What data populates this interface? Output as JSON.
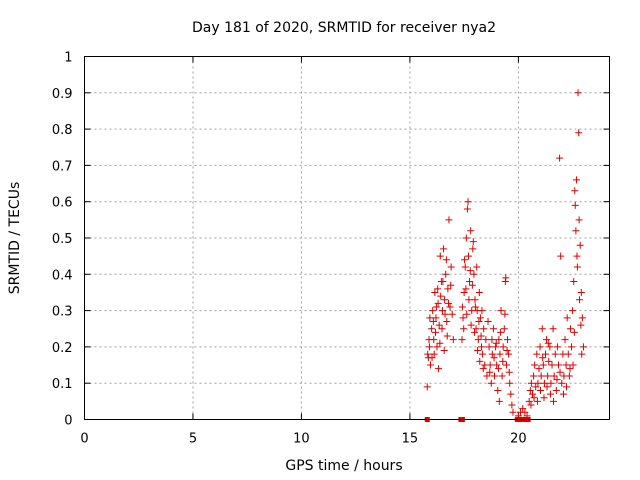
{
  "chart_data": {
    "type": "scatter",
    "title": "Day 181 of 2020, SRMTID for receiver nya2",
    "xlabel": "GPS time / hours",
    "ylabel": "SRMTID / TECUs",
    "xlim": [
      0,
      24.2
    ],
    "ylim": [
      0,
      1
    ],
    "x_ticks": [
      0,
      5,
      10,
      15,
      20
    ],
    "x_tick_labels": [
      "0",
      "5",
      "10",
      "15",
      "20"
    ],
    "y_ticks": [
      0,
      0.1,
      0.2,
      0.3,
      0.4,
      0.5,
      0.6,
      0.7,
      0.8,
      0.9,
      1
    ],
    "y_tick_labels": [
      "0",
      "0.1",
      "0.2",
      "0.3",
      "0.4",
      "0.5",
      "0.6",
      "0.7",
      "0.8",
      "0.9",
      "1"
    ],
    "grid": true,
    "marker": "+",
    "marker_color": "#e00000",
    "series": [
      {
        "name": "nya2",
        "points": [
          [
            15.8,
            0.09
          ],
          [
            15.85,
            0.17
          ],
          [
            15.9,
            0.2
          ],
          [
            15.95,
            0.15
          ],
          [
            16.0,
            0.25
          ],
          [
            16.05,
            0.3
          ],
          [
            16.1,
            0.22
          ],
          [
            16.15,
            0.35
          ],
          [
            16.2,
            0.28
          ],
          [
            16.25,
            0.2
          ],
          [
            16.3,
            0.32
          ],
          [
            16.35,
            0.26
          ],
          [
            16.4,
            0.45
          ],
          [
            16.45,
            0.38
          ],
          [
            16.5,
            0.3
          ],
          [
            16.55,
            0.47
          ],
          [
            16.6,
            0.33
          ],
          [
            16.65,
            0.4
          ],
          [
            16.7,
            0.27
          ],
          [
            16.75,
            0.36
          ],
          [
            16.8,
            0.55
          ],
          [
            16.85,
            0.31
          ],
          [
            16.9,
            0.42
          ],
          [
            16.95,
            0.29
          ],
          [
            17.0,
            0.22
          ],
          [
            15.82,
            0.18
          ],
          [
            15.88,
            0.22
          ],
          [
            15.92,
            0.28
          ],
          [
            16.02,
            0.17
          ],
          [
            16.08,
            0.27
          ],
          [
            16.12,
            0.18
          ],
          [
            16.18,
            0.24
          ],
          [
            16.22,
            0.31
          ],
          [
            16.28,
            0.36
          ],
          [
            16.32,
            0.14
          ],
          [
            16.38,
            0.21
          ],
          [
            16.42,
            0.34
          ],
          [
            16.48,
            0.25
          ],
          [
            16.52,
            0.38
          ],
          [
            16.58,
            0.19
          ],
          [
            16.62,
            0.29
          ],
          [
            16.68,
            0.44
          ],
          [
            16.72,
            0.23
          ],
          [
            16.78,
            0.32
          ],
          [
            16.88,
            0.37
          ],
          [
            17.4,
            0.22
          ],
          [
            17.45,
            0.28
          ],
          [
            17.5,
            0.35
          ],
          [
            17.55,
            0.42
          ],
          [
            17.6,
            0.5
          ],
          [
            17.65,
            0.58
          ],
          [
            17.7,
            0.45
          ],
          [
            17.75,
            0.38
          ],
          [
            17.8,
            0.52
          ],
          [
            17.85,
            0.3
          ],
          [
            17.9,
            0.47
          ],
          [
            17.95,
            0.4
          ],
          [
            18.0,
            0.33
          ],
          [
            18.05,
            0.25
          ],
          [
            18.1,
            0.3
          ],
          [
            18.15,
            0.22
          ],
          [
            18.2,
            0.35
          ],
          [
            18.25,
            0.28
          ],
          [
            18.3,
            0.2
          ],
          [
            18.35,
            0.18
          ],
          [
            18.4,
            0.25
          ],
          [
            18.45,
            0.15
          ],
          [
            18.5,
            0.22
          ],
          [
            18.55,
            0.12
          ],
          [
            18.6,
            0.27
          ],
          [
            17.42,
            0.31
          ],
          [
            17.48,
            0.25
          ],
          [
            17.52,
            0.44
          ],
          [
            17.58,
            0.36
          ],
          [
            17.62,
            0.29
          ],
          [
            17.68,
            0.6
          ],
          [
            17.72,
            0.33
          ],
          [
            17.78,
            0.41
          ],
          [
            17.82,
            0.26
          ],
          [
            17.88,
            0.37
          ],
          [
            17.92,
            0.49
          ],
          [
            17.98,
            0.24
          ],
          [
            18.02,
            0.31
          ],
          [
            18.08,
            0.42
          ],
          [
            18.12,
            0.19
          ],
          [
            18.18,
            0.27
          ],
          [
            18.22,
            0.16
          ],
          [
            18.28,
            0.23
          ],
          [
            18.32,
            0.3
          ],
          [
            18.38,
            0.14
          ],
          [
            18.65,
            0.2
          ],
          [
            18.7,
            0.15
          ],
          [
            18.75,
            0.1
          ],
          [
            18.8,
            0.18
          ],
          [
            18.85,
            0.25
          ],
          [
            18.9,
            0.12
          ],
          [
            18.95,
            0.2
          ],
          [
            19.0,
            0.15
          ],
          [
            19.05,
            0.08
          ],
          [
            19.1,
            0.22
          ],
          [
            19.15,
            0.18
          ],
          [
            19.2,
            0.3
          ],
          [
            19.25,
            0.12
          ],
          [
            19.3,
            0.2
          ],
          [
            19.35,
            0.25
          ],
          [
            19.4,
            0.38
          ],
          [
            19.45,
            0.15
          ],
          [
            19.5,
            0.22
          ],
          [
            19.55,
            0.18
          ],
          [
            19.6,
            0.1
          ],
          [
            19.65,
            0.07
          ],
          [
            19.7,
            0.04
          ],
          [
            19.75,
            0.02
          ],
          [
            18.68,
            0.13
          ],
          [
            18.78,
            0.22
          ],
          [
            18.88,
            0.17
          ],
          [
            18.98,
            0.21
          ],
          [
            19.08,
            0.14
          ],
          [
            19.18,
            0.24
          ],
          [
            19.28,
            0.16
          ],
          [
            19.38,
            0.29
          ],
          [
            19.48,
            0.19
          ],
          [
            19.58,
            0.13
          ],
          [
            19.42,
            0.39
          ],
          [
            19.12,
            0.05
          ],
          [
            20.0,
            0.01
          ],
          [
            20.1,
            0.02
          ],
          [
            20.2,
            0.03
          ],
          [
            20.3,
            0.02
          ],
          [
            20.4,
            0.01
          ],
          [
            20.5,
            0.05
          ],
          [
            20.55,
            0.08
          ],
          [
            20.6,
            0.1
          ],
          [
            20.65,
            0.07
          ],
          [
            20.7,
            0.12
          ],
          [
            20.75,
            0.15
          ],
          [
            20.8,
            0.09
          ],
          [
            20.85,
            0.18
          ],
          [
            20.9,
            0.1
          ],
          [
            20.95,
            0.14
          ],
          [
            21.0,
            0.2
          ],
          [
            21.05,
            0.12
          ],
          [
            21.1,
            0.25
          ],
          [
            21.15,
            0.15
          ],
          [
            21.2,
            0.1
          ],
          [
            21.25,
            0.18
          ],
          [
            21.3,
            0.22
          ],
          [
            21.35,
            0.12
          ],
          [
            21.4,
            0.16
          ],
          [
            21.45,
            0.2
          ],
          [
            21.5,
            0.1
          ],
          [
            21.55,
            0.15
          ],
          [
            21.6,
            0.25
          ],
          [
            21.65,
            0.12
          ],
          [
            21.7,
            0.18
          ],
          [
            21.75,
            0.08
          ],
          [
            21.8,
            0.2
          ],
          [
            21.85,
            0.15
          ],
          [
            21.9,
            0.72
          ],
          [
            21.95,
            0.45
          ],
          [
            22.0,
            0.1
          ],
          [
            22.05,
            0.18
          ],
          [
            22.1,
            0.12
          ],
          [
            22.15,
            0.22
          ],
          [
            22.2,
            0.15
          ],
          [
            22.25,
            0.28
          ],
          [
            22.3,
            0.18
          ],
          [
            22.35,
            0.12
          ],
          [
            22.4,
            0.25
          ],
          [
            22.45,
            0.2
          ],
          [
            22.5,
            0.3
          ],
          [
            22.55,
            0.38
          ],
          [
            22.6,
            0.63
          ],
          [
            22.65,
            0.52
          ],
          [
            22.7,
            0.45
          ],
          [
            22.75,
            0.9
          ],
          [
            22.78,
            0.79
          ],
          [
            22.8,
            0.55
          ],
          [
            22.85,
            0.48
          ],
          [
            22.9,
            0.35
          ],
          [
            22.95,
            0.28
          ],
          [
            23.0,
            0.2
          ],
          [
            22.62,
            0.59
          ],
          [
            22.68,
            0.66
          ],
          [
            22.72,
            0.42
          ],
          [
            22.82,
            0.33
          ],
          [
            22.88,
            0.26
          ],
          [
            22.92,
            0.18
          ],
          [
            22.58,
            0.24
          ],
          [
            22.52,
            0.15
          ],
          [
            20.58,
            0.04
          ],
          [
            20.72,
            0.06
          ],
          [
            20.88,
            0.05
          ],
          [
            21.02,
            0.08
          ],
          [
            21.18,
            0.06
          ],
          [
            21.32,
            0.09
          ],
          [
            21.48,
            0.07
          ],
          [
            21.62,
            0.05
          ],
          [
            21.78,
            0.11
          ],
          [
            21.92,
            0.13
          ],
          [
            22.08,
            0.07
          ],
          [
            22.22,
            0.09
          ],
          [
            22.38,
            0.14
          ],
          [
            21.12,
            0.17
          ],
          [
            21.38,
            0.21
          ]
        ]
      }
    ],
    "zero_markers": [
      [
        15.8,
        0
      ],
      [
        17.35,
        0
      ],
      [
        17.42,
        0
      ],
      [
        19.95,
        0
      ],
      [
        20.05,
        0
      ],
      [
        20.15,
        0
      ],
      [
        20.25,
        0
      ],
      [
        20.35,
        0
      ],
      [
        20.45,
        0
      ]
    ]
  }
}
